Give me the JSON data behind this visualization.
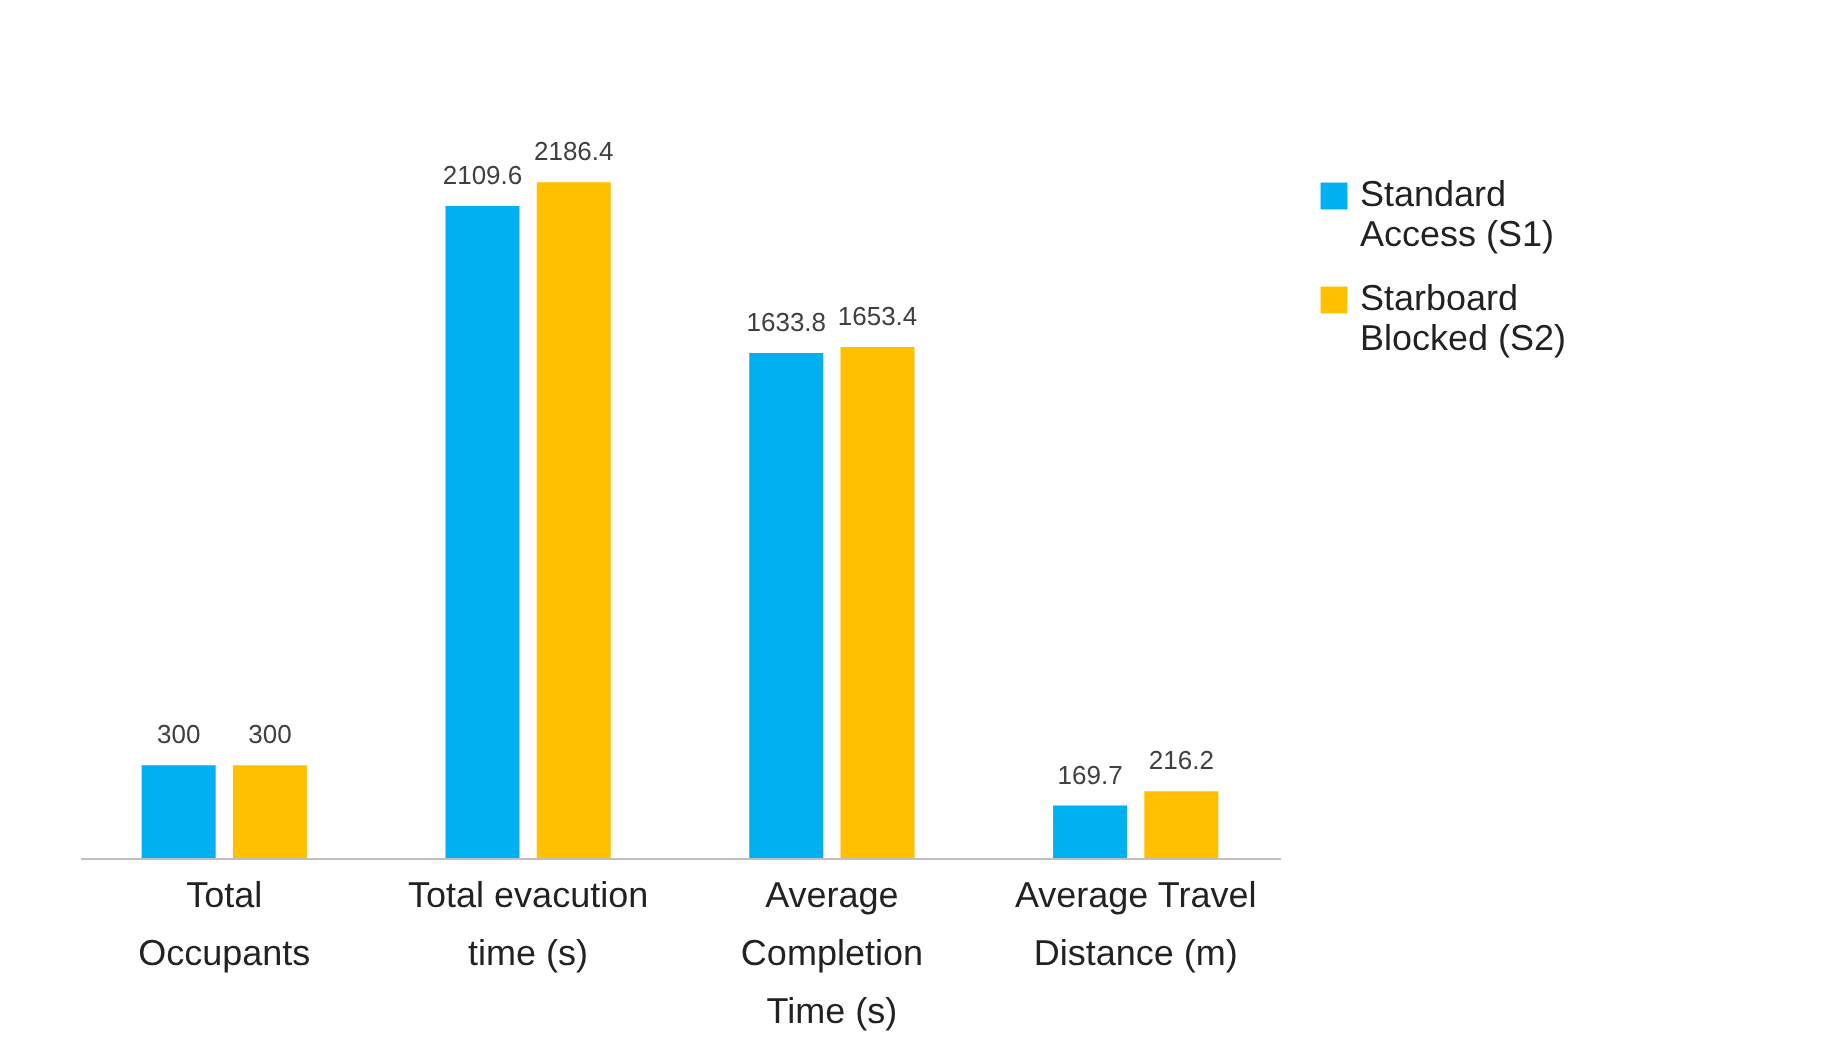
{
  "chart_data": {
    "type": "bar",
    "categories": [
      "Total\nOccupants",
      "Total evacution\ntime (s)",
      "Average\nCompletion\nTime (s)",
      "Average Travel\nDistance (m)"
    ],
    "series": [
      {
        "name": "Standard\nAccess (S1)",
        "color": "#00b0f0",
        "values": [
          300,
          2109.6,
          1633.8,
          169.7
        ]
      },
      {
        "name": "Starboard\nBlocked (S2)",
        "color": "#ffc000",
        "values": [
          300,
          2186.4,
          1653.4,
          216.2
        ]
      }
    ],
    "data_labels": true,
    "grid": false,
    "legend": "right"
  }
}
